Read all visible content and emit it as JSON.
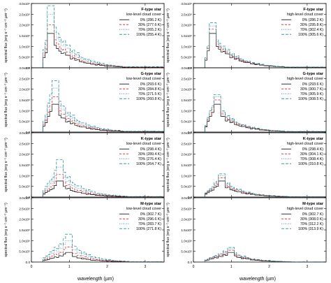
{
  "figure": {
    "shared_xlabel": "wavelength (µm)",
    "shared_ylabel": "spectral flux (erg s⁻¹ cm⁻² µm⁻¹)"
  },
  "chart_data": [
    {
      "type": "line",
      "step": true,
      "panel_row": 0,
      "panel_col": 0,
      "star": "F-type star",
      "cloud": "low-level cloud cover",
      "xlim": [
        0,
        3.5
      ],
      "ylim": [
        0,
        3000000.0
      ],
      "yticks": [
        "0.0",
        "5.0x10⁵",
        "1.0x10⁶",
        "1.5x10⁶",
        "2.0x10⁶",
        "2.5x10⁶",
        "3.0x10⁶"
      ],
      "xticks": [
        "0",
        "1",
        "2",
        "3"
      ],
      "peak_x": 0.48,
      "tail_x": 2.4,
      "series": [
        {
          "name": "0% (286.2 K)",
          "color": "#000000",
          "dash": "",
          "peak": 1600000.0
        },
        {
          "name": "30% (277.6 K)",
          "color": "#e41a1c",
          "dash": "3,2",
          "peak": 2000000.0
        },
        {
          "name": "70% (265.2 K)",
          "color": "#377eb8",
          "dash": "1,1.5",
          "peak": 2500000.0
        },
        {
          "name": "100% (255.4 K)",
          "color": "#1b8a8a",
          "dash": "4,2",
          "peak": 2900000.0
        }
      ]
    },
    {
      "type": "line",
      "step": true,
      "panel_row": 0,
      "panel_col": 1,
      "star": "F-type star",
      "cloud": "high-level cloud cover",
      "xlim": [
        0,
        3.5
      ],
      "ylim": [
        0,
        3000000.0
      ],
      "yticks": [
        "0.0",
        "5.0x10⁵",
        "1.0x10⁶",
        "1.5x10⁶",
        "2.0x10⁶",
        "2.5x10⁶",
        "3.0x10⁶"
      ],
      "xticks": [
        "0",
        "1",
        "2",
        "3"
      ],
      "peak_x": 0.48,
      "tail_x": 2.4,
      "series": [
        {
          "name": "0% (286.2 K)",
          "color": "#000000",
          "dash": "",
          "peak": 1600000.0
        },
        {
          "name": "30% (295.8 K)",
          "color": "#e41a1c",
          "dash": "3,2",
          "peak": 1800000.0
        },
        {
          "name": "70% (302.4 K)",
          "color": "#377eb8",
          "dash": "1,1.5",
          "peak": 1950000.0
        },
        {
          "name": "100% (305.6 K)",
          "color": "#1b8a8a",
          "dash": "4,2",
          "peak": 2100000.0
        }
      ]
    },
    {
      "type": "line",
      "step": true,
      "panel_row": 1,
      "panel_col": 0,
      "star": "G-type star",
      "cloud": "low-level cloud cover",
      "xlim": [
        0,
        3.5
      ],
      "ylim": [
        0,
        3000000.0
      ],
      "yticks": [
        "0.0",
        "5.0x10⁵",
        "1.0x10⁶",
        "1.5x10⁶",
        "2.0x10⁶",
        "2.5x10⁶",
        "3.0x10⁶"
      ],
      "xticks": [
        "0",
        "1",
        "2",
        "3"
      ],
      "peak_x": 0.55,
      "tail_x": 2.4,
      "series": [
        {
          "name": "0% (293.6 K)",
          "color": "#000000",
          "dash": "",
          "peak": 1300000.0
        },
        {
          "name": "30% (284.8 K)",
          "color": "#e41a1c",
          "dash": "3,2",
          "peak": 1650000.0
        },
        {
          "name": "70% (271.5 K)",
          "color": "#377eb8",
          "dash": "1,1.5",
          "peak": 2050000.0
        },
        {
          "name": "100% (260.8 K)",
          "color": "#1b8a8a",
          "dash": "4,2",
          "peak": 2400000.0
        }
      ]
    },
    {
      "type": "line",
      "step": true,
      "panel_row": 1,
      "panel_col": 1,
      "star": "G-type star",
      "cloud": "high-level cloud cover",
      "xlim": [
        0,
        3.5
      ],
      "ylim": [
        0,
        3000000.0
      ],
      "yticks": [
        "0.0",
        "5.0x10⁵",
        "1.0x10⁶",
        "1.5x10⁶",
        "2.0x10⁶",
        "2.5x10⁶",
        "3.0x10⁶"
      ],
      "xticks": [
        "0",
        "1",
        "2",
        "3"
      ],
      "peak_x": 0.55,
      "tail_x": 2.4,
      "series": [
        {
          "name": "0% (293.6 K)",
          "color": "#000000",
          "dash": "",
          "peak": 1300000.0
        },
        {
          "name": "30% (300.7 K)",
          "color": "#e41a1c",
          "dash": "3,2",
          "peak": 1500000.0
        },
        {
          "name": "70% (305.9 K)",
          "color": "#377eb8",
          "dash": "1,1.5",
          "peak": 1650000.0
        },
        {
          "name": "100% (308.5 K)",
          "color": "#1b8a8a",
          "dash": "4,2",
          "peak": 1750000.0
        }
      ]
    },
    {
      "type": "line",
      "step": true,
      "panel_row": 2,
      "panel_col": 0,
      "star": "K-type star",
      "cloud": "low-level cloud cover",
      "xlim": [
        0,
        3.5
      ],
      "ylim": [
        0,
        3000000.0
      ],
      "yticks": [
        "0.0",
        "5.0x10⁵",
        "1.0x10⁶",
        "1.5x10⁶",
        "2.0x10⁶",
        "2.5x10⁶",
        "3.0x10⁶"
      ],
      "xticks": [
        "0",
        "1",
        "2",
        "3"
      ],
      "peak_x": 0.72,
      "tail_x": 2.5,
      "series": [
        {
          "name": "0% (298.4 K)",
          "color": "#000000",
          "dash": "",
          "peak": 750000.0
        },
        {
          "name": "30% (289.4 K)",
          "color": "#e41a1c",
          "dash": "3,2",
          "peak": 1050000.0
        },
        {
          "name": "70% (276.4 K)",
          "color": "#377eb8",
          "dash": "1,1.5",
          "peak": 1400000.0
        },
        {
          "name": "100% (264.7 K)",
          "color": "#1b8a8a",
          "dash": "4,2",
          "peak": 1750000.0
        }
      ]
    },
    {
      "type": "line",
      "step": true,
      "panel_row": 2,
      "panel_col": 1,
      "star": "K-type star",
      "cloud": "high-level cloud cover",
      "xlim": [
        0,
        3.5
      ],
      "ylim": [
        0,
        3000000.0
      ],
      "yticks": [
        "0.0",
        "5.0x10⁵",
        "1.0x10⁶",
        "1.5x10⁶",
        "2.0x10⁶",
        "2.5x10⁶",
        "3.0x10⁶"
      ],
      "xticks": [
        "0",
        "1",
        "2",
        "3"
      ],
      "peak_x": 0.72,
      "tail_x": 2.5,
      "series": [
        {
          "name": "0% (298.4 K)",
          "color": "#000000",
          "dash": "",
          "peak": 750000.0
        },
        {
          "name": "30% (304.1 K)",
          "color": "#e41a1c",
          "dash": "3,2",
          "peak": 900000.0
        },
        {
          "name": "70% (308.4 K)",
          "color": "#377eb8",
          "dash": "1,1.5",
          "peak": 1000000.0
        },
        {
          "name": "100% (310.8 K)",
          "color": "#1b8a8a",
          "dash": "4,2",
          "peak": 1080000.0
        }
      ]
    },
    {
      "type": "line",
      "step": true,
      "panel_row": 3,
      "panel_col": 0,
      "star": "M-type star",
      "cloud": "low-level cloud cover",
      "xlim": [
        0,
        3.5
      ],
      "ylim": [
        0,
        3000000.0
      ],
      "yticks": [
        "0.0",
        "5.0x10⁵",
        "1.0x10⁶",
        "1.5x10⁶",
        "2.0x10⁶",
        "2.5x10⁶",
        "3.0x10⁶"
      ],
      "xticks": [
        "0",
        "1",
        "2",
        "3"
      ],
      "peak_x": 0.95,
      "tail_x": 2.6,
      "series": [
        {
          "name": "0% (302.7 K)",
          "color": "#000000",
          "dash": "",
          "peak": 450000.0
        },
        {
          "name": "30% (296.6 K)",
          "color": "#e41a1c",
          "dash": "3,2",
          "peak": 700000.0
        },
        {
          "name": "70% (283.7 K)",
          "color": "#377eb8",
          "dash": "1,1.5",
          "peak": 1000000.0
        },
        {
          "name": "100% (271.8 K)",
          "color": "#1b8a8a",
          "dash": "4,2",
          "peak": 1300000.0
        }
      ]
    },
    {
      "type": "line",
      "step": true,
      "panel_row": 3,
      "panel_col": 1,
      "star": "M-type star",
      "cloud": "high-level cloud cover",
      "xlim": [
        0,
        3.5
      ],
      "ylim": [
        0,
        3000000.0
      ],
      "yticks": [
        "0.0",
        "5.0x10⁵",
        "1.0x10⁶",
        "1.5x10⁶",
        "2.0x10⁶",
        "2.5x10⁶",
        "3.0x10⁶"
      ],
      "xticks": [
        "0",
        "1",
        "2",
        "3"
      ],
      "peak_x": 0.95,
      "tail_x": 2.6,
      "series": [
        {
          "name": "0% (302.7 K)",
          "color": "#000000",
          "dash": "",
          "peak": 450000.0
        },
        {
          "name": "30% (308.0 K)",
          "color": "#e41a1c",
          "dash": "3,2",
          "peak": 550000.0
        },
        {
          "name": "70% (312.2 K)",
          "color": "#377eb8",
          "dash": "1,1.5",
          "peak": 620000.0
        },
        {
          "name": "100% (313.9 K)",
          "color": "#1b8a8a",
          "dash": "4,2",
          "peak": 680000.0
        }
      ]
    }
  ]
}
